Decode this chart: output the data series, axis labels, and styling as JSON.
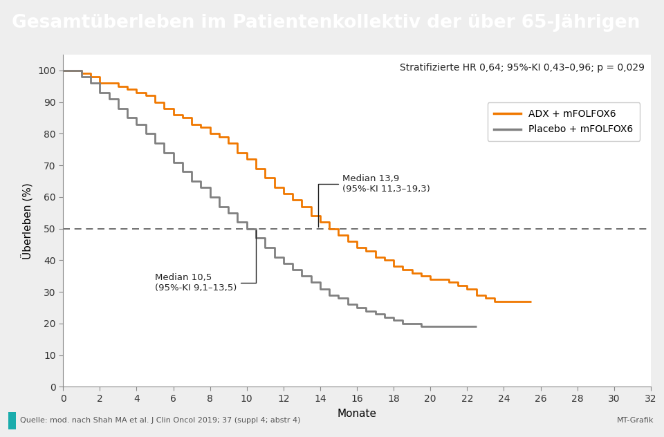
{
  "title": "Gesamtüberleben im Patientenkollektiv der über 65-Jährigen",
  "title_bg_color": "#1AACAC",
  "title_text_color": "#FFFFFF",
  "ylabel": "Überleben (%)",
  "xlabel": "Monate",
  "xlim": [
    0,
    32
  ],
  "ylim": [
    0,
    105
  ],
  "yticks": [
    0,
    10,
    20,
    30,
    40,
    50,
    60,
    70,
    80,
    90,
    100
  ],
  "xticks": [
    0,
    2,
    4,
    6,
    8,
    10,
    12,
    14,
    16,
    18,
    20,
    22,
    24,
    26,
    28,
    30,
    32
  ],
  "hr_text": "Stratifizierte HR 0,64; 95%-KI 0,43–0,96; p = 0,029",
  "median_adx_text": "Median 13,9\n(95%-KI 11,3–19,3)",
  "median_placebo_text": "Median 10,5\n(95%-KI 9,1–13,5)",
  "source_text": "Quelle: mod. nach Shah MA et al. J Clin Oncol 2019; 37 (suppl 4; abstr 4)",
  "source_color": "#1AACAC",
  "mt_text": "MT-Grafik",
  "legend_adx": "ADX + mFOLFOX6",
  "legend_placebo": "Placebo + mFOLFOX6",
  "color_adx": "#F07800",
  "color_placebo": "#808080",
  "outer_bg_color": "#EEEEEE",
  "plot_bg_color": "#FFFFFF",
  "adx_x": [
    0,
    0.5,
    1,
    1.5,
    2,
    2.5,
    3,
    3.5,
    4,
    4.5,
    5,
    5.5,
    6,
    6.5,
    7,
    7.5,
    8,
    8.5,
    9,
    9.5,
    10,
    10.5,
    11,
    11.5,
    12,
    12.5,
    13,
    13.5,
    14,
    14.5,
    15,
    15.5,
    16,
    16.5,
    17,
    17.5,
    18,
    18.5,
    19,
    19.5,
    20,
    20.5,
    21,
    21.5,
    22,
    22.5,
    23,
    23.5,
    24,
    24.5,
    25,
    25.5
  ],
  "adx_y": [
    100,
    100,
    99,
    98,
    96,
    96,
    95,
    94,
    93,
    92,
    90,
    88,
    86,
    85,
    83,
    82,
    80,
    79,
    77,
    74,
    72,
    69,
    66,
    63,
    61,
    59,
    57,
    54,
    52,
    50,
    48,
    46,
    44,
    43,
    41,
    40,
    38,
    37,
    36,
    35,
    34,
    34,
    33,
    32,
    31,
    29,
    28,
    27,
    27,
    27,
    27,
    27
  ],
  "placebo_x": [
    0,
    0.5,
    1,
    1.5,
    2,
    2.5,
    3,
    3.5,
    4,
    4.5,
    5,
    5.5,
    6,
    6.5,
    7,
    7.5,
    8,
    8.5,
    9,
    9.5,
    10,
    10.5,
    11,
    11.5,
    12,
    12.5,
    13,
    13.5,
    14,
    14.5,
    15,
    15.5,
    16,
    16.5,
    17,
    17.5,
    18,
    18.5,
    19,
    19.5,
    20,
    20.5,
    21,
    21.5,
    22,
    22.5
  ],
  "placebo_y": [
    100,
    100,
    98,
    96,
    93,
    91,
    88,
    85,
    83,
    80,
    77,
    74,
    71,
    68,
    65,
    63,
    60,
    57,
    55,
    52,
    50,
    47,
    44,
    41,
    39,
    37,
    35,
    33,
    31,
    29,
    28,
    26,
    25,
    24,
    23,
    22,
    21,
    20,
    20,
    19,
    19,
    19,
    19,
    19,
    19,
    19
  ]
}
